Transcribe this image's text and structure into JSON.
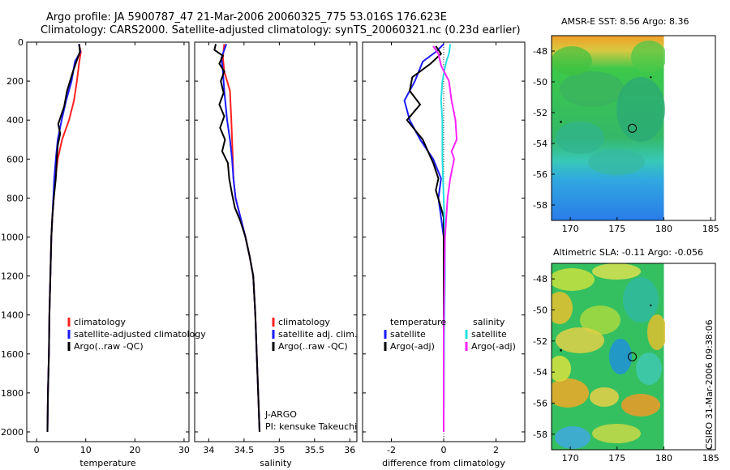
{
  "header": {
    "line1": "Argo profile: JA 5900787_47 21-Mar-2006 20060325_775 53.016S 176.623E",
    "line2": "Climatology: CARS2000. Satellite-adjusted climatology: synTS_20060321.nc (0.23d earlier)"
  },
  "stamp": "CSIRO 31-Mar-2006 09:38:06",
  "colors": {
    "climatology": "#ff2020",
    "satellite": "#1a1aff",
    "argo": "#000000",
    "sal_satellite": "#22e0e0",
    "sal_argo": "#ff22ff"
  },
  "chart_data": [
    {
      "type": "line",
      "id": "temperature",
      "xlabel": "temperature",
      "xlim": [
        -2,
        31
      ],
      "ylim": [
        2050,
        0
      ],
      "xticks": [
        0,
        10,
        20,
        30
      ],
      "yticks": [
        0,
        200,
        400,
        600,
        800,
        1000,
        1200,
        1400,
        1600,
        1800,
        2000
      ],
      "legend": [
        "climatology",
        "satellite-adjusted climatology",
        "Argo(..raw -QC)"
      ],
      "series": [
        {
          "name": "climatology",
          "color": "#ff2020",
          "points": [
            [
              8.6,
              10
            ],
            [
              9.0,
              50
            ],
            [
              8.7,
              100
            ],
            [
              8.2,
              200
            ],
            [
              7.6,
              300
            ],
            [
              6.6,
              400
            ],
            [
              5.2,
              500
            ],
            [
              4.3,
              600
            ],
            [
              3.8,
              700
            ],
            [
              3.5,
              800
            ],
            [
              3.2,
              900
            ],
            [
              3.0,
              1000
            ],
            [
              2.8,
              1200
            ],
            [
              2.6,
              1400
            ],
            [
              2.5,
              1600
            ],
            [
              2.3,
              1800
            ],
            [
              2.2,
              2000
            ]
          ]
        },
        {
          "name": "satellite-adjusted climatology",
          "color": "#1a1aff",
          "points": [
            [
              8.6,
              10
            ],
            [
              8.9,
              50
            ],
            [
              7.8,
              100
            ],
            [
              7.1,
              200
            ],
            [
              6.0,
              300
            ],
            [
              5.1,
              400
            ],
            [
              4.3,
              500
            ],
            [
              3.9,
              600
            ],
            [
              3.6,
              700
            ],
            [
              3.4,
              800
            ],
            [
              3.2,
              900
            ],
            [
              3.0,
              1000
            ],
            [
              2.8,
              1200
            ],
            [
              2.6,
              1400
            ],
            [
              2.5,
              1600
            ],
            [
              2.3,
              1800
            ],
            [
              2.2,
              2000
            ]
          ]
        },
        {
          "name": "Argo(..raw -QC)",
          "color": "#000000",
          "points": [
            [
              8.7,
              10
            ],
            [
              8.8,
              50
            ],
            [
              8.1,
              100
            ],
            [
              7.4,
              150
            ],
            [
              6.2,
              250
            ],
            [
              5.6,
              330
            ],
            [
              4.4,
              420
            ],
            [
              4.8,
              470
            ],
            [
              4.3,
              530
            ],
            [
              4.1,
              600
            ],
            [
              3.9,
              700
            ],
            [
              3.5,
              800
            ],
            [
              3.2,
              900
            ],
            [
              3.0,
              1000
            ],
            [
              2.8,
              1200
            ],
            [
              2.6,
              1400
            ],
            [
              2.5,
              1600
            ],
            [
              2.3,
              1800
            ],
            [
              2.2,
              2000
            ]
          ]
        }
      ]
    },
    {
      "type": "line",
      "id": "salinity",
      "xlabel": "salinity",
      "xlim": [
        33.8,
        36.1
      ],
      "ylim": [
        2050,
        0
      ],
      "xticks": [
        34,
        34.5,
        35,
        35.5,
        36
      ],
      "legend": [
        "climatology",
        "satellite adj. clim.",
        "Argo(..raw -QC)"
      ],
      "annotation": [
        "J-ARGO",
        "PI: kensuke Takeuchi"
      ],
      "series": [
        {
          "name": "climatology",
          "color": "#ff2020",
          "points": [
            [
              34.22,
              10
            ],
            [
              34.2,
              80
            ],
            [
              34.22,
              150
            ],
            [
              34.3,
              250
            ],
            [
              34.32,
              400
            ],
            [
              34.33,
              500
            ],
            [
              34.34,
              600
            ],
            [
              34.35,
              700
            ],
            [
              34.38,
              800
            ],
            [
              34.45,
              900
            ],
            [
              34.52,
              1000
            ],
            [
              34.58,
              1100
            ],
            [
              34.63,
              1200
            ],
            [
              34.66,
              1400
            ],
            [
              34.68,
              1600
            ],
            [
              34.7,
              1800
            ],
            [
              34.72,
              2000
            ]
          ]
        },
        {
          "name": "satellite adj. clim.",
          "color": "#1a1aff",
          "points": [
            [
              34.25,
              10
            ],
            [
              34.18,
              80
            ],
            [
              34.2,
              150
            ],
            [
              34.22,
              250
            ],
            [
              34.26,
              400
            ],
            [
              34.3,
              500
            ],
            [
              34.33,
              600
            ],
            [
              34.35,
              700
            ],
            [
              34.38,
              800
            ],
            [
              34.45,
              900
            ],
            [
              34.52,
              1000
            ],
            [
              34.58,
              1100
            ],
            [
              34.63,
              1200
            ],
            [
              34.66,
              1400
            ],
            [
              34.68,
              1600
            ],
            [
              34.7,
              1800
            ],
            [
              34.72,
              2000
            ]
          ]
        },
        {
          "name": "Argo(..raw -QC)",
          "color": "#000000",
          "points": [
            [
              34.1,
              10
            ],
            [
              34.08,
              40
            ],
            [
              34.2,
              70
            ],
            [
              34.15,
              110
            ],
            [
              34.22,
              150
            ],
            [
              34.17,
              200
            ],
            [
              34.21,
              260
            ],
            [
              34.15,
              320
            ],
            [
              34.22,
              380
            ],
            [
              34.16,
              440
            ],
            [
              34.23,
              500
            ],
            [
              34.19,
              560
            ],
            [
              34.27,
              620
            ],
            [
              34.29,
              700
            ],
            [
              34.33,
              780
            ],
            [
              34.37,
              850
            ],
            [
              34.45,
              920
            ],
            [
              34.52,
              1000
            ],
            [
              34.58,
              1100
            ],
            [
              34.63,
              1200
            ],
            [
              34.66,
              1400
            ],
            [
              34.68,
              1600
            ],
            [
              34.7,
              1800
            ],
            [
              34.72,
              2000
            ]
          ]
        }
      ]
    },
    {
      "type": "line",
      "id": "difference",
      "xlabel": "difference from climatology",
      "xlim": [
        -3.1,
        3.1
      ],
      "ylim": [
        2050,
        0
      ],
      "xticks": [
        -2,
        0,
        2
      ],
      "legend_left_title": "temperature",
      "legend_right_title": "salinity",
      "legend_left": [
        "satellite",
        "Argo(-adj)"
      ],
      "legend_right": [
        "satellite",
        "Argo(-adj)"
      ],
      "series": [
        {
          "name": "temperature satellite",
          "color": "#1a1aff",
          "points": [
            [
              0.0,
              10
            ],
            [
              -0.3,
              50
            ],
            [
              -0.8,
              100
            ],
            [
              -1.1,
              200
            ],
            [
              -1.5,
              300
            ],
            [
              -1.3,
              400
            ],
            [
              -0.9,
              500
            ],
            [
              -0.4,
              600
            ],
            [
              -0.1,
              700
            ],
            [
              -0.2,
              800
            ],
            [
              -0.1,
              900
            ],
            [
              0.0,
              1000
            ],
            [
              0.0,
              1500
            ],
            [
              0.0,
              2000
            ]
          ]
        },
        {
          "name": "temperature Argo(-adj)",
          "color": "#000000",
          "points": [
            [
              -0.3,
              20
            ],
            [
              -0.1,
              60
            ],
            [
              -0.5,
              110
            ],
            [
              -1.2,
              180
            ],
            [
              -1.3,
              250
            ],
            [
              -0.9,
              320
            ],
            [
              -1.4,
              400
            ],
            [
              -1.1,
              450
            ],
            [
              -0.8,
              500
            ],
            [
              -0.6,
              560
            ],
            [
              -0.4,
              620
            ],
            [
              -0.2,
              700
            ],
            [
              -0.3,
              760
            ],
            [
              -0.1,
              850
            ],
            [
              0.0,
              900
            ],
            [
              0.0,
              1500
            ],
            [
              0.0,
              2000
            ]
          ]
        },
        {
          "name": "salinity satellite",
          "color": "#22e0e0",
          "points": [
            [
              0.25,
              10
            ],
            [
              0.2,
              60
            ],
            [
              0.1,
              100
            ],
            [
              -0.05,
              200
            ],
            [
              -0.1,
              300
            ],
            [
              -0.05,
              400
            ],
            [
              -0.05,
              600
            ],
            [
              0.0,
              800
            ],
            [
              0.05,
              1000
            ],
            [
              0.05,
              1200
            ],
            [
              0.02,
              1500
            ],
            [
              0.0,
              2000
            ]
          ]
        },
        {
          "name": "salinity Argo(-adj)",
          "color": "#ff22ff",
          "points": [
            [
              -0.4,
              20
            ],
            [
              -0.2,
              60
            ],
            [
              -0.1,
              120
            ],
            [
              0.2,
              200
            ],
            [
              0.3,
              300
            ],
            [
              0.45,
              400
            ],
            [
              0.5,
              500
            ],
            [
              0.3,
              560
            ],
            [
              0.4,
              600
            ],
            [
              0.25,
              700
            ],
            [
              0.15,
              800
            ],
            [
              0.1,
              900
            ],
            [
              0.05,
              1000
            ],
            [
              0.0,
              1500
            ],
            [
              0.0,
              2000
            ]
          ]
        }
      ]
    },
    {
      "type": "heatmap",
      "id": "sst_map",
      "title": "AMSR-E SST: 8.56 Argo: 8.36",
      "xlim": [
        168,
        185.5
      ],
      "ylim": [
        -59,
        -47
      ],
      "xticks": [
        170,
        175,
        180,
        185
      ],
      "yticks": [
        -48,
        -50,
        -52,
        -54,
        -56,
        -58
      ],
      "argo_position": [
        176.623,
        -53.016
      ]
    },
    {
      "type": "heatmap",
      "id": "sla_map",
      "title": "Altimetric SLA: -0.11 Argo: -0.056",
      "xlim": [
        168,
        185.5
      ],
      "ylim": [
        -59,
        -47
      ],
      "xticks": [
        170,
        175,
        180,
        185
      ],
      "yticks": [
        -48,
        -50,
        -52,
        -54,
        -56,
        -58
      ],
      "argo_position": [
        176.623,
        -53.016
      ]
    }
  ]
}
